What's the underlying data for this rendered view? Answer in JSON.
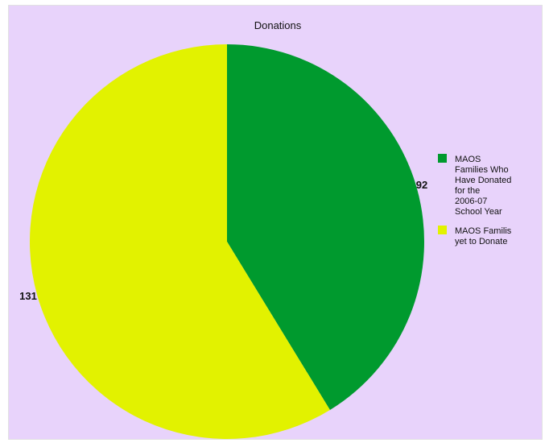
{
  "chart_data": {
    "type": "pie",
    "title": "Donations",
    "slices": [
      {
        "label": "MAOS Families Who Have Donated for the 2006-07 School Year",
        "legend_lines": [
          "MAOS",
          "Families Who",
          "Have Donated",
          "for the",
          "2006-07",
          "School Year"
        ],
        "value": 92,
        "value_label": "92",
        "color": "#009a2e"
      },
      {
        "label": "MAOS Familis yet to Donate",
        "legend_lines": [
          "MAOS Familis",
          "yet to Donate"
        ],
        "value": 131,
        "value_label": "131",
        "color": "#e2f200"
      }
    ],
    "legend_position": "right",
    "background_color": "#e8d3fb"
  }
}
